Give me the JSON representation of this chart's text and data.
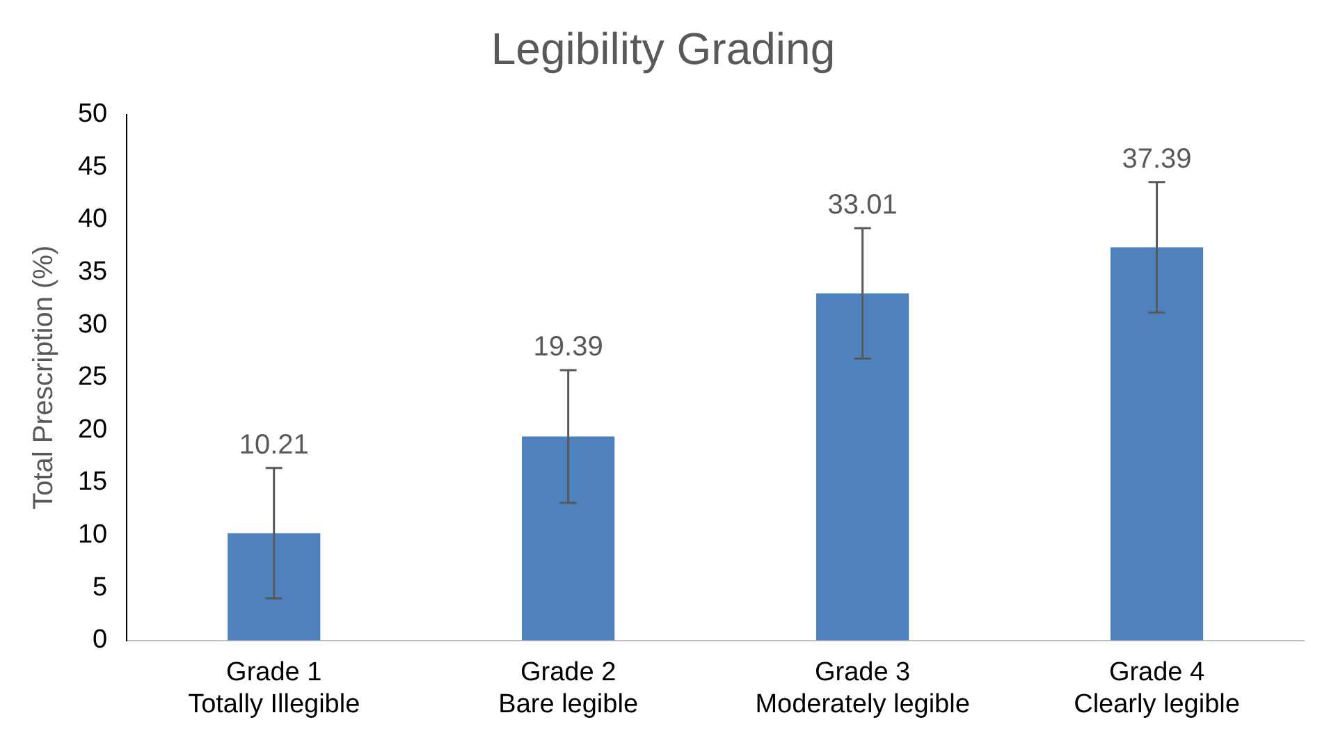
{
  "chart_data": {
    "type": "bar",
    "title": "Legibility Grading",
    "ylabel": "Total Prescription (%)",
    "categories": [
      "Grade 1\nTotally Illegible",
      "Grade 2\nBare legible",
      "Grade 3\nModerately legible",
      "Grade 4\nClearly legible"
    ],
    "values": [
      10.21,
      19.39,
      33.01,
      37.39
    ],
    "errors": [
      6.2,
      6.3,
      6.2,
      6.2
    ],
    "color": "#4f81bd",
    "ylim": [
      0,
      50
    ],
    "yticks": [
      0,
      5,
      10,
      15,
      20,
      25,
      30,
      35,
      40,
      45,
      50
    ],
    "grid": false,
    "legend": false,
    "data_labels": true
  }
}
